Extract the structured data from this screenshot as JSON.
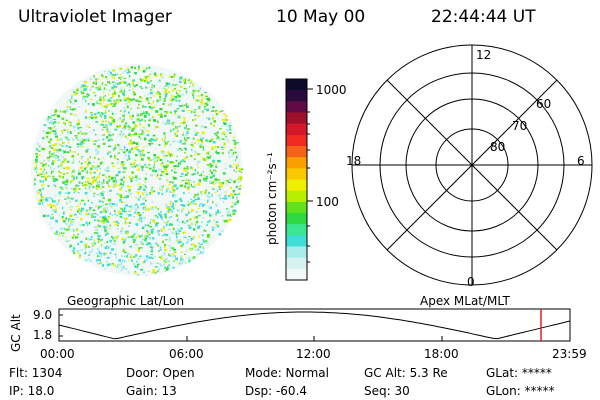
{
  "header": {
    "instrument": "Ultraviolet Imager",
    "date": "10 May 00",
    "time": "22:44:44 UT"
  },
  "colorbar": {
    "unit_label": "photon cm⁻²s⁻¹",
    "tick_labels": [
      "1000",
      "100"
    ],
    "colors": [
      "#0c0c2a",
      "#2a0a3c",
      "#600a46",
      "#a0102a",
      "#d4182a",
      "#f02a1e",
      "#f4621a",
      "#f9a000",
      "#fac800",
      "#eef000",
      "#b8f000",
      "#62e21c",
      "#2ed840",
      "#3ce690",
      "#40dcd8",
      "#a8ecec",
      "#d8f2f2",
      "#f2f8f8"
    ]
  },
  "polar_plot": {
    "mlt_labels": {
      "top": "12",
      "left": "18",
      "right": "6",
      "bottom": "0"
    },
    "lat_labels": [
      "60",
      "70",
      "80"
    ]
  },
  "timeline": {
    "y_axis_label": "GC Alt",
    "y_ticks": [
      "9.0",
      "1.8"
    ],
    "left_caption": "Geographic Lat/Lon",
    "right_caption": "Apex MLat/MLT",
    "x_ticks": [
      "00:00",
      "06:00",
      "12:00",
      "18:00",
      "23:59"
    ],
    "marker_color": "#e02020"
  },
  "status": {
    "flt": "Flt: 1304",
    "ip": "IP: 18.0",
    "door": "Door: Open",
    "gain": "Gain: 13",
    "mode": "Mode: Normal",
    "dsp": "Dsp:  -60.4",
    "gc_alt": "GC Alt: 5.3 Re",
    "seq": "Seq: 30",
    "glat": "GLat: *****",
    "glon": "GLon: *****"
  }
}
